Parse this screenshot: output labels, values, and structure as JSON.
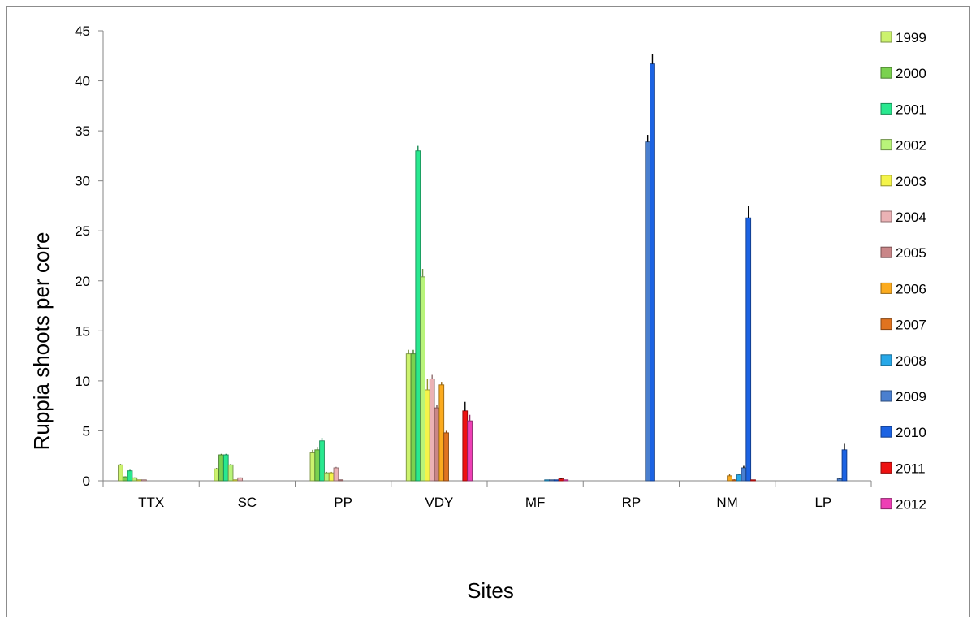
{
  "chart_data": {
    "type": "bar",
    "title": "",
    "xlabel": "Sites",
    "ylabel": "Ruppia shoots per core",
    "ylim": [
      0,
      45
    ],
    "yticks": [
      0,
      5,
      10,
      15,
      20,
      25,
      30,
      35,
      40,
      45
    ],
    "legend_position": "right",
    "grid": false,
    "categories": [
      "TTX",
      "SC",
      "PP",
      "VDY",
      "MF",
      "RP",
      "NM",
      "LP"
    ],
    "series": [
      {
        "name": "1999",
        "color": "#ccf26e",
        "values": [
          1.6,
          1.2,
          2.8,
          12.7,
          0,
          0,
          0,
          0
        ],
        "errors": [
          0.1,
          0.1,
          0.3,
          0.4,
          0,
          0,
          0,
          0
        ]
      },
      {
        "name": "2000",
        "color": "#7ad14f",
        "values": [
          0.4,
          2.6,
          3.1,
          12.7,
          0,
          0,
          0,
          0
        ],
        "errors": [
          0.05,
          0.1,
          0.3,
          0.4,
          0,
          0,
          0,
          0
        ]
      },
      {
        "name": "2001",
        "color": "#29e88f",
        "values": [
          1.0,
          2.6,
          4.0,
          33.0,
          0,
          0,
          0,
          0
        ],
        "errors": [
          0.1,
          0.1,
          0.3,
          0.5,
          0,
          0,
          0,
          0
        ]
      },
      {
        "name": "2002",
        "color": "#b9f47a",
        "values": [
          0.3,
          1.6,
          0.8,
          20.4,
          0,
          0,
          0,
          0
        ],
        "errors": [
          0.05,
          0.1,
          0.1,
          0.8,
          0,
          0,
          0,
          0
        ]
      },
      {
        "name": "2003",
        "color": "#f4f44a",
        "values": [
          0.1,
          0.1,
          0.8,
          9.1,
          0,
          0,
          0,
          0
        ],
        "errors": [
          0,
          0,
          0.1,
          1.1,
          0,
          0,
          0,
          0
        ]
      },
      {
        "name": "2004",
        "color": "#ebb2b5",
        "values": [
          0.1,
          0.3,
          1.3,
          10.2,
          0,
          0,
          0,
          0
        ],
        "errors": [
          0,
          0.05,
          0.1,
          0.4,
          0,
          0,
          0,
          0
        ]
      },
      {
        "name": "2005",
        "color": "#c98688",
        "values": [
          0,
          0,
          0.1,
          7.3,
          0,
          0,
          0,
          0
        ],
        "errors": [
          0,
          0,
          0,
          0.3,
          0,
          0,
          0,
          0
        ]
      },
      {
        "name": "2006",
        "color": "#fbab1f",
        "values": [
          0,
          0,
          0,
          9.6,
          0,
          0,
          0.5,
          0
        ],
        "errors": [
          0,
          0,
          0,
          0.3,
          0,
          0,
          0.2,
          0
        ]
      },
      {
        "name": "2007",
        "color": "#e0731f",
        "values": [
          0,
          0,
          0,
          4.8,
          0,
          0,
          0.1,
          0
        ],
        "errors": [
          0,
          0,
          0,
          0.2,
          0,
          0,
          0.05,
          0
        ]
      },
      {
        "name": "2008",
        "color": "#27a8e8",
        "values": [
          0,
          0,
          0,
          0,
          0.1,
          0,
          0.6,
          0
        ],
        "errors": [
          0,
          0,
          0,
          0,
          0,
          0,
          0.1,
          0
        ]
      },
      {
        "name": "2009",
        "color": "#4a7fcf",
        "values": [
          0,
          0,
          0,
          0,
          0.1,
          33.9,
          1.3,
          0.2
        ],
        "errors": [
          0,
          0,
          0,
          0,
          0,
          0.7,
          0.2,
          0.05
        ]
      },
      {
        "name": "2010",
        "color": "#1c63e3",
        "values": [
          0,
          0,
          0,
          0,
          0.1,
          41.7,
          26.3,
          3.1
        ],
        "errors": [
          0,
          0,
          0,
          0,
          0,
          1.0,
          1.2,
          0.6
        ]
      },
      {
        "name": "2011",
        "color": "#ee1111",
        "values": [
          0,
          0,
          0,
          7.0,
          0.2,
          0,
          0.1,
          0
        ],
        "errors": [
          0,
          0,
          0,
          0.9,
          0.05,
          0,
          0,
          0
        ]
      },
      {
        "name": "2012",
        "color": "#ee3fb5",
        "values": [
          0,
          0,
          0,
          6.0,
          0.1,
          0,
          0,
          0
        ],
        "errors": [
          0,
          0,
          0,
          0.6,
          0,
          0,
          0,
          0
        ]
      }
    ]
  }
}
